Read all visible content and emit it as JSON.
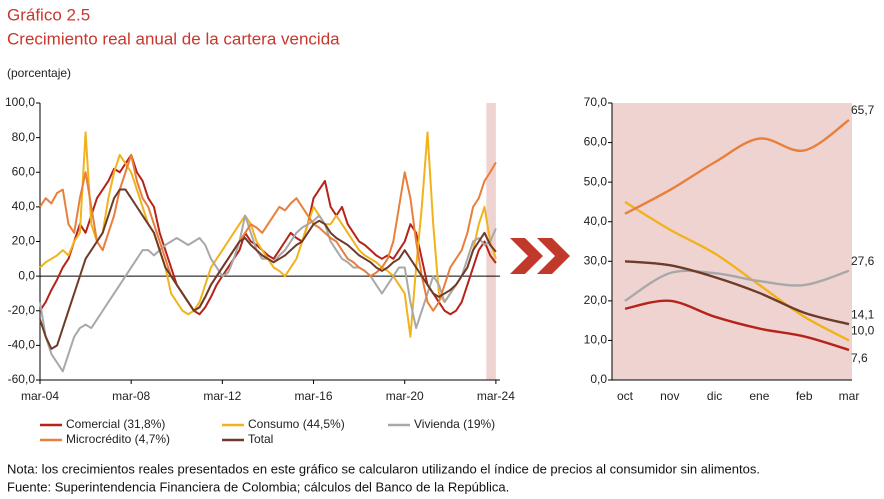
{
  "header": {
    "label": "Gráfico 2.5",
    "title": "Crecimiento real anual de la cartera vencida"
  },
  "chart_data": [
    {
      "type": "line",
      "ylabel": "(porcentaje)",
      "x": [
        2004.17,
        2004.42,
        2004.67,
        2004.92,
        2005.17,
        2005.42,
        2005.67,
        2005.92,
        2006.17,
        2006.42,
        2006.67,
        2006.92,
        2007.17,
        2007.42,
        2007.67,
        2007.92,
        2008.17,
        2008.42,
        2008.67,
        2008.92,
        2009.17,
        2009.42,
        2009.67,
        2009.92,
        2010.17,
        2010.42,
        2010.67,
        2010.92,
        2011.17,
        2011.42,
        2011.67,
        2011.92,
        2012.17,
        2012.42,
        2012.67,
        2012.92,
        2013.17,
        2013.42,
        2013.67,
        2013.92,
        2014.17,
        2014.42,
        2014.67,
        2014.92,
        2015.17,
        2015.42,
        2015.67,
        2015.92,
        2016.17,
        2016.42,
        2016.67,
        2016.92,
        2017.17,
        2017.42,
        2017.67,
        2017.92,
        2018.17,
        2018.42,
        2018.67,
        2018.92,
        2019.17,
        2019.42,
        2019.67,
        2019.92,
        2020.17,
        2020.42,
        2020.67,
        2020.92,
        2021.17,
        2021.42,
        2021.67,
        2021.92,
        2022.17,
        2022.42,
        2022.67,
        2022.92,
        2023.17,
        2023.42,
        2023.67,
        2023.92,
        2024.17
      ],
      "xlim": [
        2004.17,
        2024.35
      ],
      "xticks": [
        {
          "value": 2004.17,
          "label": "mar-04"
        },
        {
          "value": 2008.17,
          "label": "mar-08"
        },
        {
          "value": 2012.17,
          "label": "mar-12"
        },
        {
          "value": 2016.17,
          "label": "mar-16"
        },
        {
          "value": 2020.17,
          "label": "mar-20"
        },
        {
          "value": 2024.17,
          "label": "mar-24"
        }
      ],
      "ylim": [
        -60,
        100
      ],
      "yticks": [
        {
          "value": -60,
          "label": "-60,0"
        },
        {
          "value": -40,
          "label": "-40,0"
        },
        {
          "value": -20,
          "label": "-20,0"
        },
        {
          "value": 0,
          "label": "0,0"
        },
        {
          "value": 20,
          "label": "20,0"
        },
        {
          "value": 40,
          "label": "40,0"
        },
        {
          "value": 60,
          "label": "60,0"
        },
        {
          "value": 80,
          "label": "80,0"
        },
        {
          "value": 100,
          "label": "100,0"
        }
      ],
      "highlight_x": [
        2023.75,
        2024.17
      ],
      "highlight_color": "#efd3d1",
      "series": [
        {
          "name": "Comercial (31,8%)",
          "color": "#b5231a",
          "values": [
            -20,
            -15,
            -8,
            -2,
            5,
            10,
            20,
            30,
            25,
            35,
            45,
            50,
            55,
            62,
            60,
            65,
            70,
            60,
            55,
            45,
            40,
            25,
            15,
            5,
            -5,
            -10,
            -15,
            -20,
            -22,
            -18,
            -12,
            -5,
            0,
            5,
            10,
            15,
            25,
            20,
            18,
            15,
            12,
            10,
            15,
            20,
            25,
            22,
            20,
            30,
            45,
            50,
            55,
            40,
            35,
            40,
            30,
            25,
            20,
            18,
            15,
            12,
            10,
            12,
            10,
            15,
            20,
            30,
            25,
            10,
            -5,
            -10,
            -15,
            -20,
            -22,
            -20,
            -15,
            -5,
            5,
            15,
            20,
            12,
            7.6
          ]
        },
        {
          "name": "Consumo (44,5%)",
          "color": "#f0b31c",
          "values": [
            5,
            8,
            10,
            12,
            15,
            12,
            20,
            25,
            83,
            30,
            20,
            25,
            45,
            60,
            70,
            65,
            60,
            50,
            40,
            30,
            25,
            15,
            5,
            -10,
            -15,
            -20,
            -22,
            -20,
            -15,
            -5,
            5,
            10,
            15,
            20,
            25,
            30,
            35,
            30,
            20,
            15,
            10,
            5,
            3,
            0,
            5,
            10,
            20,
            30,
            40,
            35,
            30,
            30,
            35,
            30,
            25,
            20,
            15,
            12,
            10,
            8,
            5,
            3,
            0,
            -5,
            -10,
            -35,
            5,
            40,
            83,
            30,
            -10,
            -15,
            -10,
            -5,
            0,
            5,
            15,
            30,
            40,
            20,
            10.0
          ]
        },
        {
          "name": "Vivienda (19%)",
          "color": "#a8a8a8",
          "values": [
            -15,
            -35,
            -45,
            -50,
            -55,
            -45,
            -35,
            -30,
            -28,
            -30,
            -25,
            -20,
            -15,
            -10,
            -5,
            0,
            5,
            10,
            15,
            15,
            12,
            15,
            18,
            20,
            22,
            20,
            18,
            20,
            22,
            18,
            10,
            5,
            0,
            2,
            10,
            20,
            35,
            25,
            15,
            10,
            10,
            8,
            12,
            15,
            20,
            25,
            28,
            30,
            32,
            35,
            30,
            20,
            15,
            10,
            8,
            5,
            5,
            3,
            0,
            -5,
            -10,
            -5,
            0,
            5,
            5,
            -15,
            -30,
            -20,
            -10,
            0,
            -5,
            -15,
            -10,
            -5,
            0,
            10,
            20,
            22,
            18,
            20,
            27.6
          ]
        },
        {
          "name": "Microcrédito (4,7%)",
          "color": "#e87f3a",
          "values": [
            40,
            45,
            42,
            48,
            50,
            30,
            25,
            45,
            60,
            40,
            20,
            15,
            25,
            35,
            50,
            60,
            70,
            55,
            45,
            40,
            30,
            20,
            10,
            0,
            -5,
            -10,
            -15,
            -20,
            -18,
            -12,
            -5,
            0,
            5,
            10,
            15,
            20,
            25,
            30,
            28,
            25,
            30,
            35,
            40,
            38,
            42,
            45,
            40,
            35,
            30,
            28,
            25,
            22,
            20,
            15,
            10,
            8,
            5,
            3,
            0,
            2,
            5,
            10,
            20,
            40,
            60,
            45,
            20,
            0,
            -15,
            -20,
            -15,
            -5,
            5,
            10,
            15,
            25,
            40,
            45,
            55,
            60,
            65.7
          ]
        },
        {
          "name": "Total",
          "color": "#6e3b2a",
          "values": [
            -25,
            -35,
            -42,
            -40,
            -30,
            -20,
            -10,
            0,
            10,
            15,
            20,
            25,
            35,
            45,
            50,
            50,
            45,
            40,
            35,
            30,
            25,
            15,
            5,
            0,
            -5,
            -10,
            -15,
            -20,
            -18,
            -12,
            -5,
            0,
            5,
            10,
            15,
            20,
            22,
            18,
            15,
            12,
            10,
            8,
            10,
            12,
            15,
            18,
            20,
            25,
            30,
            32,
            30,
            25,
            22,
            20,
            18,
            15,
            12,
            10,
            8,
            5,
            3,
            5,
            8,
            10,
            15,
            10,
            5,
            0,
            -5,
            -10,
            -12,
            -10,
            -8,
            -5,
            0,
            5,
            15,
            20,
            25,
            18,
            14.1
          ]
        }
      ]
    },
    {
      "type": "line",
      "smooth": true,
      "background": "#efd3d1",
      "categories": [
        "oct",
        "nov",
        "dic",
        "ene",
        "feb",
        "mar"
      ],
      "ylim": [
        0,
        70
      ],
      "yticks": [
        {
          "value": 0,
          "label": "0,0"
        },
        {
          "value": 10,
          "label": "10,0"
        },
        {
          "value": 20,
          "label": "20,0"
        },
        {
          "value": 30,
          "label": "30,0"
        },
        {
          "value": 40,
          "label": "40,0"
        },
        {
          "value": 50,
          "label": "50,0"
        },
        {
          "value": 60,
          "label": "60,0"
        },
        {
          "value": 70,
          "label": "70,0"
        }
      ],
      "series": [
        {
          "color": "#b5231a",
          "values": [
            18,
            20,
            16,
            13,
            11,
            7.6
          ],
          "value_labels": [
            null,
            null,
            null,
            null,
            null,
            "7,6"
          ]
        },
        {
          "color": "#f0b31c",
          "values": [
            45,
            38,
            32,
            24,
            16,
            10.0
          ],
          "value_labels": [
            null,
            null,
            null,
            null,
            null,
            "10,0"
          ]
        },
        {
          "color": "#a8a8a8",
          "values": [
            20,
            27,
            27,
            25,
            24,
            27.6
          ],
          "value_labels": [
            null,
            null,
            null,
            null,
            null,
            "27,6"
          ]
        },
        {
          "color": "#e87f3a",
          "values": [
            42,
            48,
            55,
            61,
            58,
            65.7
          ],
          "value_labels": [
            null,
            null,
            null,
            null,
            null,
            "65,7"
          ]
        },
        {
          "color": "#6e3b2a",
          "values": [
            30,
            29,
            26,
            22,
            17,
            14.1
          ],
          "value_labels": [
            null,
            null,
            null,
            null,
            null,
            "14,1"
          ]
        }
      ]
    }
  ],
  "footer": {
    "note": "Nota: los crecimientos reales presentados en este gráfico se calcularon utilizando el índice de precios al consumidor sin alimentos.",
    "source": "Fuente: Superintendencia Financiera de Colombia; cálculos del Banco de la República."
  }
}
